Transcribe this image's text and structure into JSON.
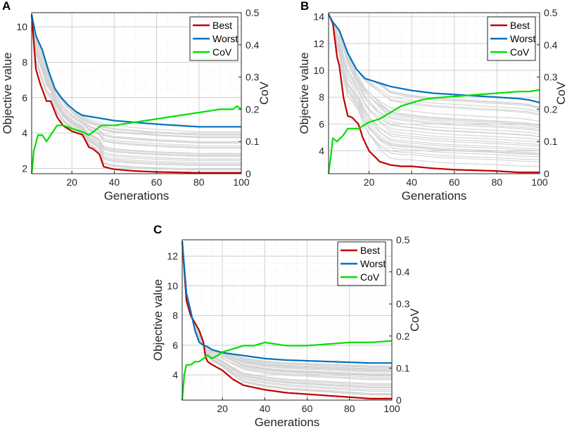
{
  "chart_data": [
    {
      "panel": "A",
      "type": "line",
      "xlabel": "Generations",
      "ylabel": "Objective value",
      "y2label": "CoV",
      "xlim": [
        1,
        100
      ],
      "ylim": [
        1.7,
        10.8
      ],
      "y2lim": [
        0,
        0.5
      ],
      "xticks": [
        "20",
        "40",
        "60",
        "80",
        "100"
      ],
      "yticks": [
        "2",
        "4",
        "6",
        "8",
        "10"
      ],
      "y2ticks": [
        "0",
        "0.1",
        "0.2",
        "0.3",
        "0.4",
        "0.5"
      ],
      "legend": [
        "Best",
        "Worst",
        "CoV"
      ],
      "series": [
        {
          "name": "Best",
          "axis": "left",
          "x": [
            1,
            3,
            5,
            8,
            10,
            13,
            16,
            20,
            25,
            28,
            30,
            33,
            35,
            38,
            40,
            50,
            60,
            80,
            100
          ],
          "values": [
            10.7,
            7.6,
            6.8,
            5.8,
            5.8,
            4.9,
            4.4,
            4.1,
            3.9,
            3.2,
            3.1,
            2.8,
            2.1,
            2.0,
            1.95,
            1.85,
            1.8,
            1.75,
            1.75
          ]
        },
        {
          "name": "Worst",
          "axis": "left",
          "x": [
            1,
            3,
            6,
            9,
            12,
            15,
            18,
            22,
            25,
            30,
            40,
            50,
            60,
            80,
            100
          ],
          "values": [
            10.7,
            9.5,
            8.7,
            7.5,
            6.5,
            6.0,
            5.6,
            5.2,
            5.0,
            4.9,
            4.7,
            4.6,
            4.5,
            4.35,
            4.35
          ]
        },
        {
          "name": "CoV",
          "axis": "right",
          "x": [
            1,
            2,
            4,
            6,
            8,
            10,
            13,
            16,
            20,
            25,
            28,
            30,
            34,
            37,
            40,
            45,
            50,
            60,
            70,
            80,
            90,
            96,
            98,
            100
          ],
          "values": [
            0.0,
            0.07,
            0.12,
            0.12,
            0.1,
            0.12,
            0.15,
            0.15,
            0.14,
            0.13,
            0.12,
            0.13,
            0.15,
            0.15,
            0.15,
            0.155,
            0.16,
            0.17,
            0.18,
            0.19,
            0.2,
            0.2,
            0.21,
            0.2
          ]
        }
      ]
    },
    {
      "panel": "B",
      "type": "line",
      "xlabel": "Generations",
      "ylabel": "Objective value",
      "y2label": "CoV",
      "xlim": [
        1,
        100
      ],
      "ylim": [
        2.3,
        14.3
      ],
      "y2lim": [
        0,
        0.5
      ],
      "xticks": [
        "20",
        "40",
        "60",
        "80",
        "100"
      ],
      "yticks": [
        "4",
        "6",
        "8",
        "10",
        "12",
        "14"
      ],
      "y2ticks": [
        "0",
        "0.1",
        "0.2",
        "0.3",
        "0.4",
        "0.5"
      ],
      "legend": [
        "Best",
        "Worst",
        "CoV"
      ],
      "series": [
        {
          "name": "Best",
          "axis": "left",
          "x": [
            1,
            3,
            5,
            6,
            8,
            10,
            12,
            15,
            17,
            20,
            25,
            30,
            35,
            40,
            50,
            60,
            70,
            80,
            90,
            100
          ],
          "values": [
            14.2,
            13.5,
            11.0,
            10.4,
            8.0,
            6.6,
            6.5,
            6.0,
            5.0,
            4.0,
            3.2,
            2.95,
            2.85,
            2.85,
            2.7,
            2.6,
            2.55,
            2.5,
            2.4,
            2.4
          ]
        },
        {
          "name": "Worst",
          "axis": "left",
          "x": [
            1,
            3,
            6,
            10,
            14,
            18,
            22,
            30,
            40,
            50,
            60,
            70,
            80,
            90,
            95,
            100
          ],
          "values": [
            14.2,
            13.6,
            13.0,
            11.3,
            10.1,
            9.4,
            9.2,
            8.8,
            8.5,
            8.3,
            8.2,
            8.1,
            8.0,
            7.9,
            7.8,
            7.6
          ]
        },
        {
          "name": "CoV",
          "axis": "right",
          "x": [
            1,
            2,
            3,
            5,
            8,
            10,
            12,
            15,
            20,
            25,
            30,
            35,
            40,
            45,
            50,
            60,
            70,
            80,
            90,
            95,
            100
          ],
          "values": [
            0.0,
            0.05,
            0.11,
            0.1,
            0.12,
            0.14,
            0.14,
            0.14,
            0.16,
            0.17,
            0.19,
            0.21,
            0.22,
            0.23,
            0.235,
            0.24,
            0.245,
            0.25,
            0.255,
            0.255,
            0.26
          ]
        }
      ]
    },
    {
      "panel": "C",
      "type": "line",
      "xlabel": "Generations",
      "ylabel": "Objective value",
      "y2label": "CoV",
      "xlim": [
        1,
        100
      ],
      "ylim": [
        2.3,
        13.1
      ],
      "y2lim": [
        0,
        0.5
      ],
      "xticks": [
        "20",
        "40",
        "60",
        "80",
        "100"
      ],
      "yticks": [
        "4",
        "6",
        "8",
        "10",
        "12"
      ],
      "y2ticks": [
        "0",
        "0.1",
        "0.2",
        "0.3",
        "0.4",
        "0.5"
      ],
      "legend": [
        "Best",
        "Worst",
        "CoV"
      ],
      "series": [
        {
          "name": "Best",
          "axis": "left",
          "x": [
            1,
            3,
            5,
            7,
            9,
            11,
            12,
            13,
            15,
            20,
            25,
            30,
            40,
            50,
            60,
            70,
            80,
            90,
            100
          ],
          "values": [
            13.0,
            9.0,
            8.0,
            7.5,
            7.0,
            6.2,
            5.2,
            4.9,
            4.7,
            4.3,
            3.7,
            3.3,
            3.0,
            2.8,
            2.7,
            2.6,
            2.5,
            2.4,
            2.4
          ]
        },
        {
          "name": "Worst",
          "axis": "left",
          "x": [
            1,
            3,
            5,
            7,
            9,
            11,
            13,
            15,
            20,
            25,
            30,
            40,
            50,
            60,
            70,
            80,
            90,
            100
          ],
          "values": [
            13.0,
            9.5,
            8.3,
            7.0,
            6.2,
            6.0,
            5.9,
            5.7,
            5.5,
            5.4,
            5.3,
            5.1,
            5.0,
            4.95,
            4.9,
            4.85,
            4.8,
            4.8
          ]
        },
        {
          "name": "CoV",
          "axis": "right",
          "x": [
            1,
            2,
            3,
            5,
            7,
            9,
            11,
            13,
            15,
            18,
            20,
            25,
            30,
            35,
            40,
            50,
            60,
            70,
            80,
            90,
            100
          ],
          "values": [
            0.0,
            0.08,
            0.11,
            0.11,
            0.12,
            0.12,
            0.13,
            0.14,
            0.13,
            0.14,
            0.15,
            0.16,
            0.17,
            0.17,
            0.18,
            0.17,
            0.17,
            0.175,
            0.18,
            0.18,
            0.185
          ]
        }
      ]
    }
  ],
  "colors": {
    "best": "#c00000",
    "worst": "#0072bd",
    "cov": "#00e000",
    "population": "#d3d3d3",
    "grid": "#d9d9d9"
  }
}
